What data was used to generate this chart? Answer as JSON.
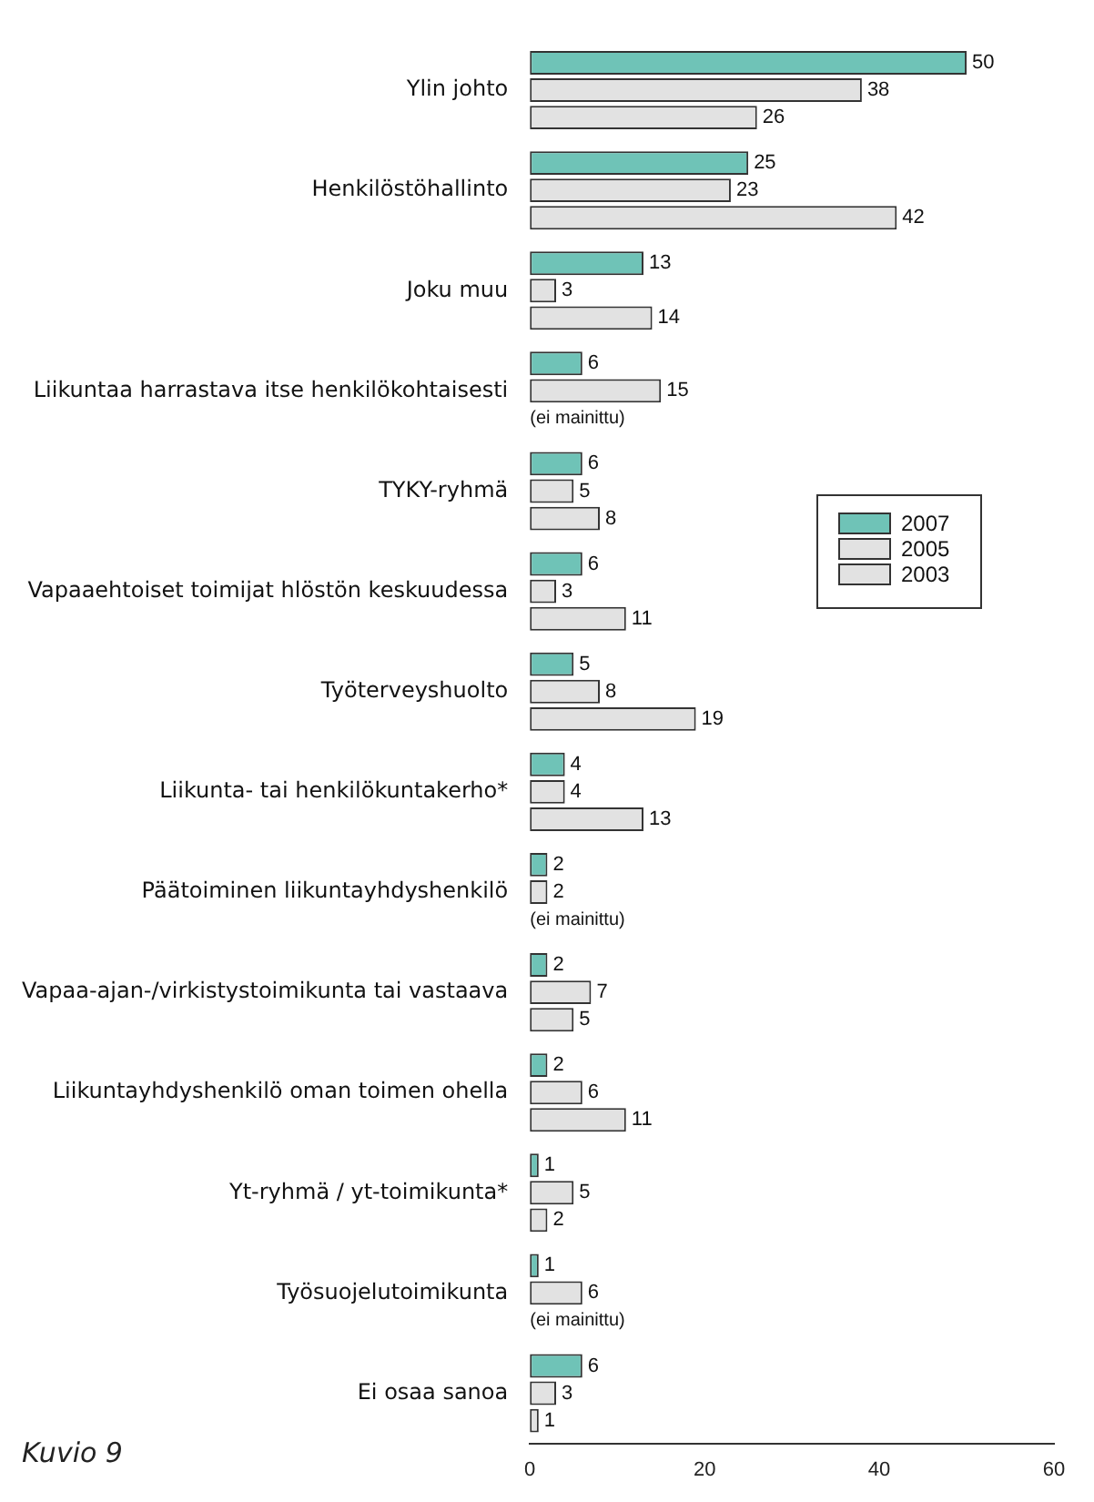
{
  "chart_data": {
    "type": "bar",
    "orientation": "horizontal",
    "categories": [
      "Ylin johto",
      "Henkilöstöhallinto",
      "Joku muu",
      "Liikuntaa harrastava itse henkilökohtaisesti",
      "TYKY-ryhmä",
      "Vapaaehtoiset toimijat hlöstön keskuudessa",
      "Työterveyshuolto",
      "Liikunta- tai henkilökuntakerho*",
      "Päätoiminen liikuntayhdyshenkilö",
      "Vapaa-ajan-/virkistystoimikunta tai vastaava",
      "Liikuntayhdyshenkilö oman toimen ohella",
      "Yt-ryhmä / yt-toimikunta*",
      "Työsuojelutoimikunta",
      "Ei osaa sanoa"
    ],
    "series": [
      {
        "name": "2007",
        "color": "#6fc3b7",
        "values": [
          50,
          25,
          13,
          6,
          6,
          6,
          5,
          4,
          2,
          2,
          2,
          1,
          1,
          6
        ]
      },
      {
        "name": "2005",
        "color": "#e2e2e2",
        "values": [
          38,
          23,
          3,
          15,
          5,
          3,
          8,
          4,
          2,
          7,
          6,
          5,
          6,
          3
        ]
      },
      {
        "name": "2003",
        "color": "#e2e2e2",
        "values": [
          26,
          42,
          14,
          null,
          8,
          11,
          19,
          13,
          null,
          5,
          11,
          2,
          null,
          1
        ]
      }
    ],
    "xlim": [
      0,
      60
    ],
    "xticks": [
      0,
      20,
      40,
      60
    ],
    "grid": false,
    "legend": "right",
    "data_labels": true,
    "annotations": [
      "Kuvio 9",
      "(ei mainittu)",
      "(ei mainittu)",
      "(ei mainittu)"
    ]
  }
}
